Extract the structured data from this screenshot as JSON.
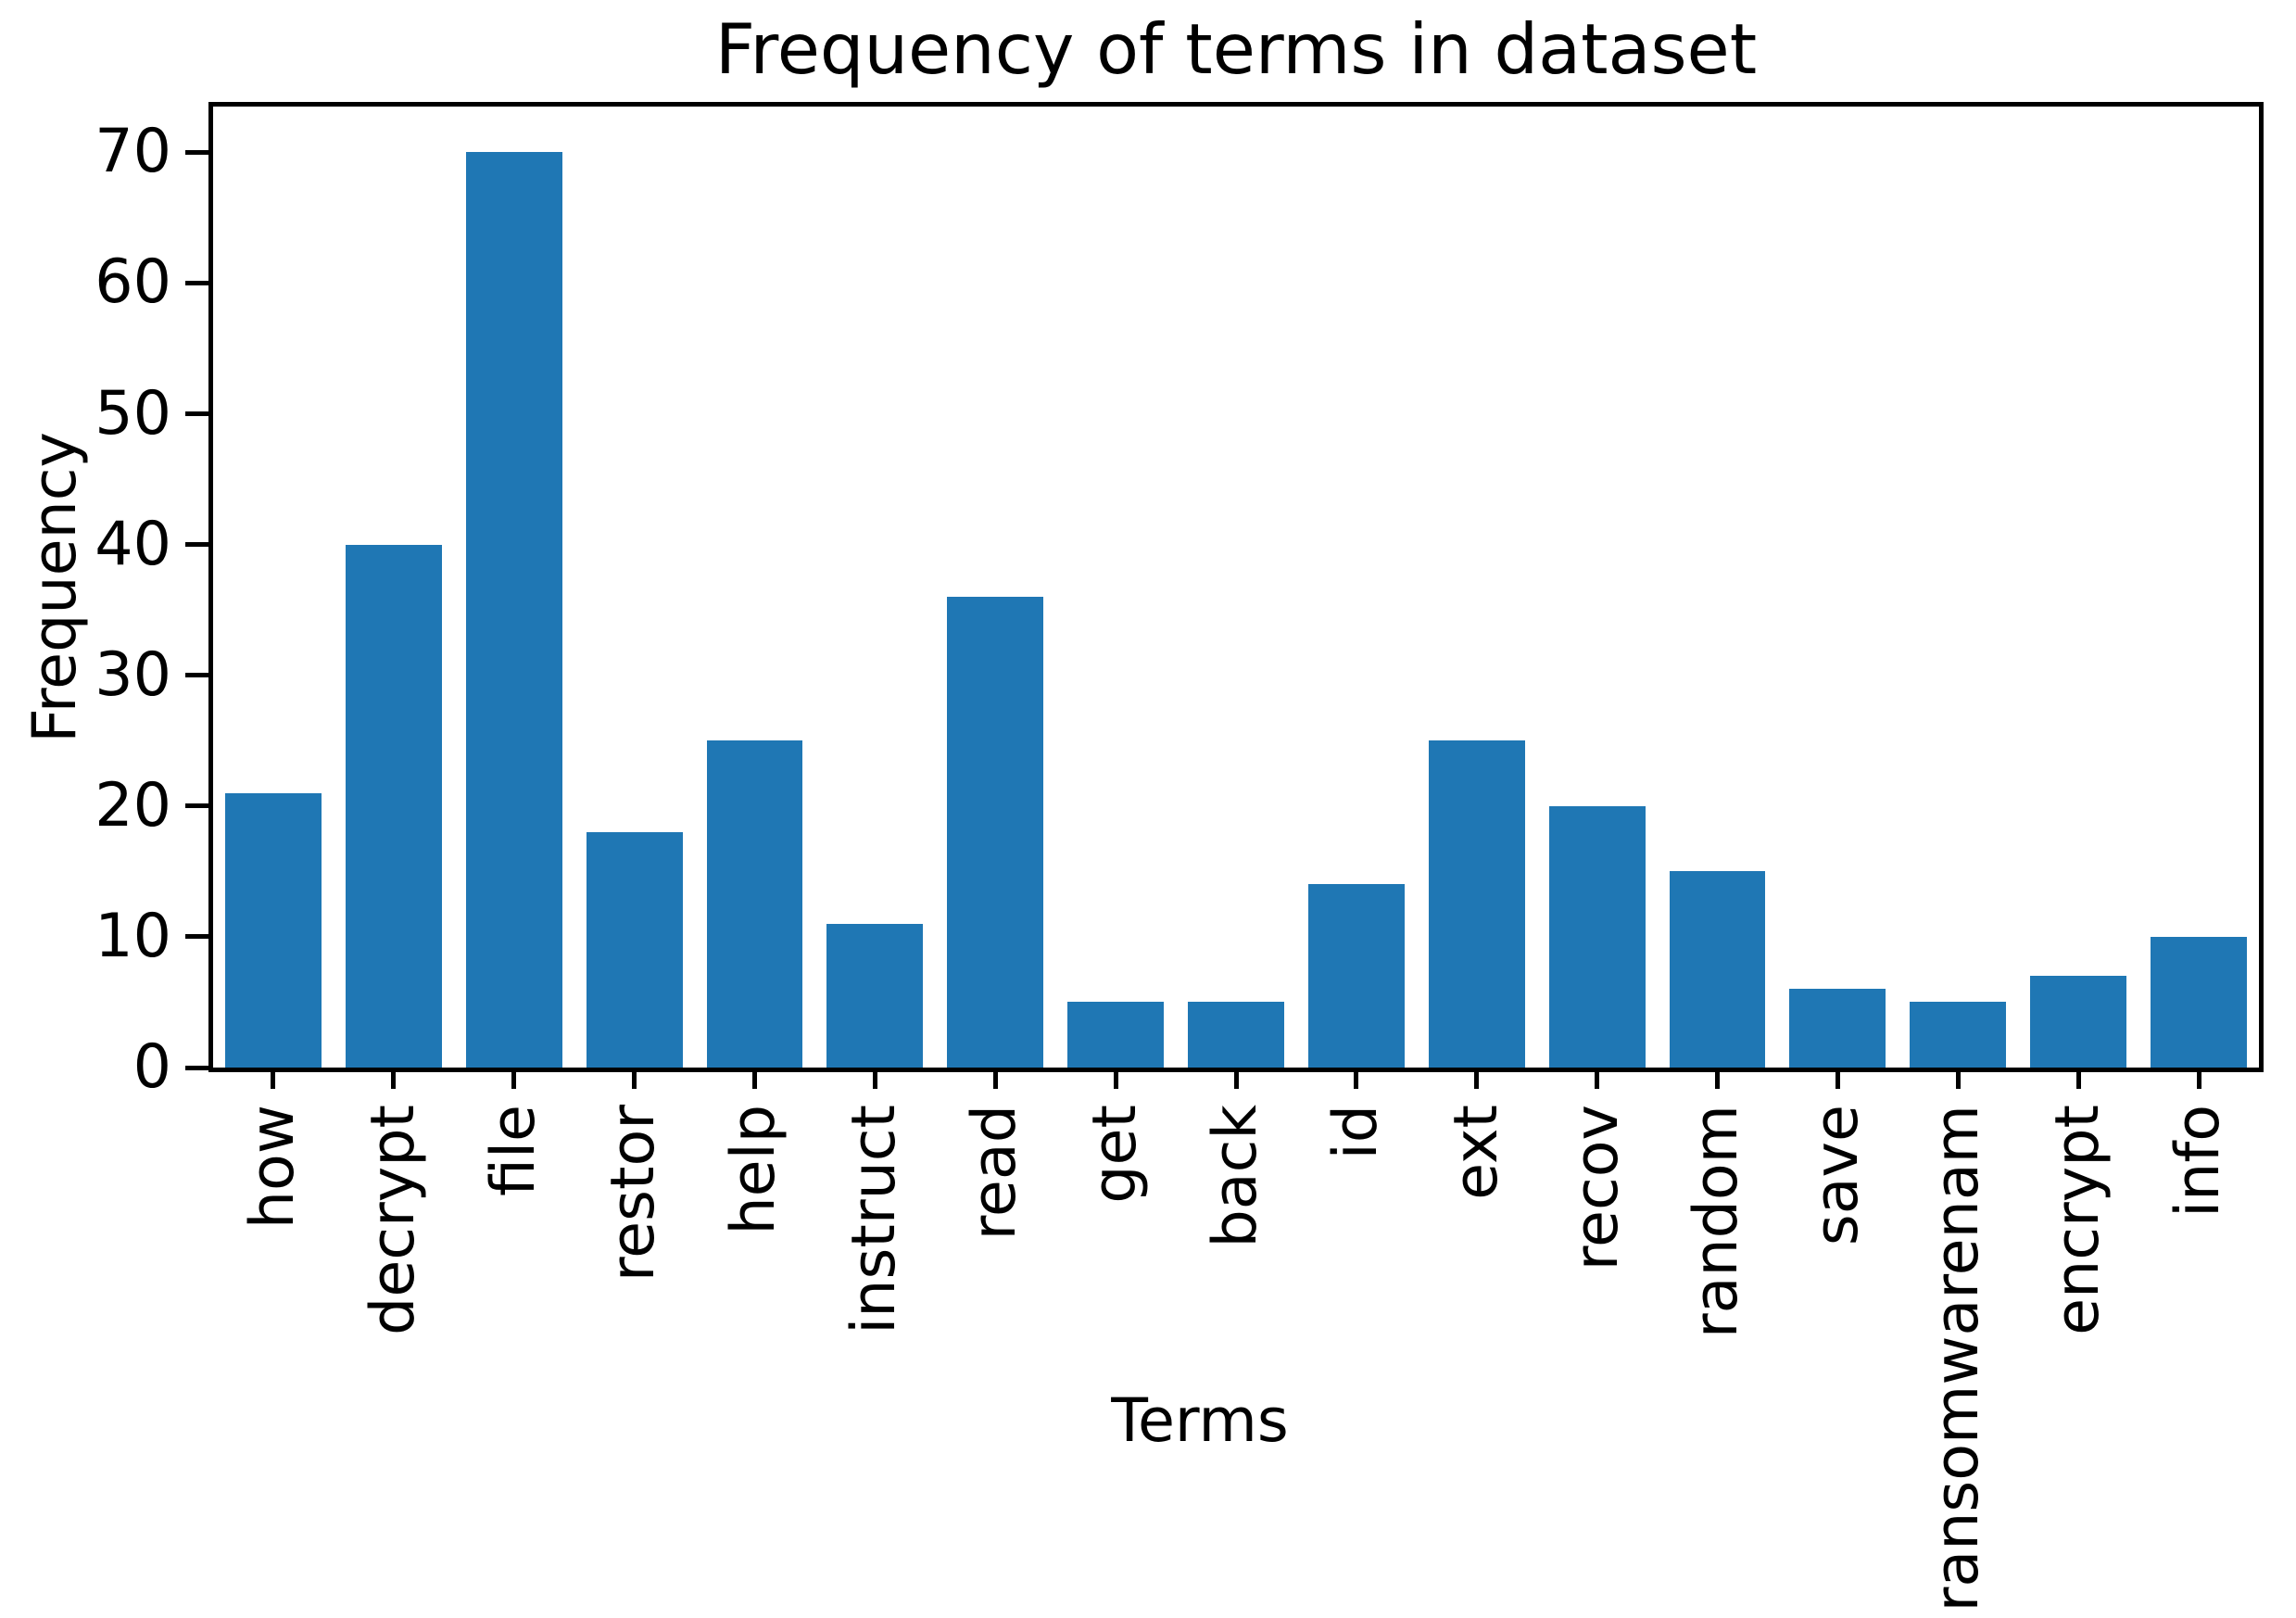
{
  "chart_data": {
    "type": "bar",
    "title": "Frequency of terms in dataset",
    "xlabel": "Terms",
    "ylabel": "Frequency",
    "categories": [
      "how",
      "decrypt",
      "file",
      "restor",
      "help",
      "instruct",
      "read",
      "get",
      "back",
      "id",
      "ext",
      "recov",
      "random",
      "save",
      "ransomwarenam",
      "encrypt",
      "info"
    ],
    "values": [
      21,
      40,
      70,
      18,
      25,
      11,
      36,
      5,
      5,
      14,
      25,
      20,
      15,
      6,
      5,
      7,
      10
    ],
    "yticks": [
      0,
      10,
      20,
      30,
      40,
      50,
      60,
      70
    ],
    "ylim": [
      0,
      73.5
    ],
    "xtick_rotation_deg": 90,
    "bar_color": "#1f77b4",
    "axis_color": "#000000",
    "background_color": "#ffffff",
    "grid": false,
    "legend_position": "none"
  }
}
